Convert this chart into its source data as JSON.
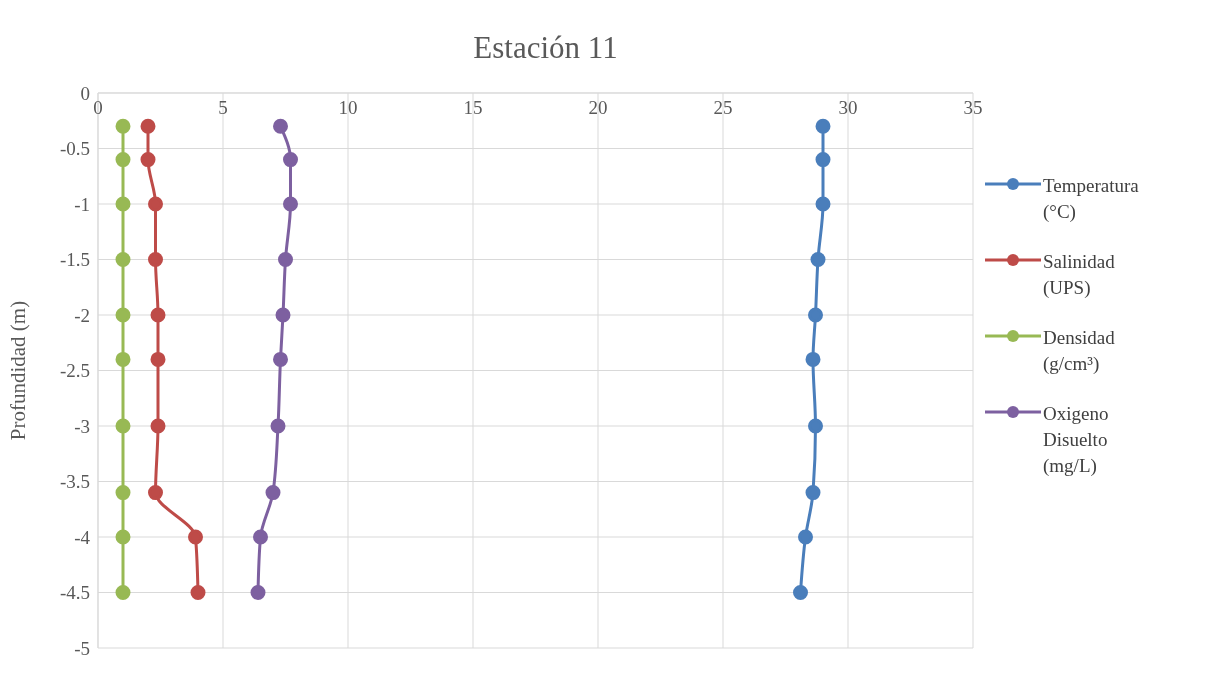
{
  "chart_data": {
    "type": "line",
    "title": "Estación 11",
    "ylabel": "Profundidad (m)",
    "x": [
      -0.3,
      -0.6,
      -1,
      -1.5,
      -2,
      -2.4,
      -3,
      -3.6,
      -4,
      -4.5
    ],
    "series": [
      {
        "name": "Temperatura (°C)",
        "color": "#4a7ebb",
        "values": [
          29.0,
          29.0,
          29.0,
          28.8,
          28.7,
          28.6,
          28.7,
          28.6,
          28.3,
          28.1
        ]
      },
      {
        "name": "Salinidad (UPS)",
        "color": "#be4b48",
        "values": [
          2.0,
          2.0,
          2.3,
          2.3,
          2.4,
          2.4,
          2.4,
          2.3,
          3.9,
          4.0
        ]
      },
      {
        "name": "Densidad (g/cm³)",
        "color": "#98b954",
        "values": [
          1.0,
          1.0,
          1.0,
          1.0,
          1.0,
          1.0,
          1.0,
          1.0,
          1.0,
          1.0
        ]
      },
      {
        "name": "Oxigeno Disuelto (mg/L)",
        "color": "#7d60a0",
        "values": [
          7.3,
          7.7,
          7.7,
          7.5,
          7.4,
          7.3,
          7.2,
          7.0,
          6.5,
          6.4
        ]
      }
    ],
    "orientation": "horizontal",
    "xlim": [
      0,
      35
    ],
    "xticks": [
      0,
      5,
      10,
      15,
      20,
      25,
      30,
      35
    ],
    "ylim": [
      -5,
      0
    ],
    "yticks": [
      0,
      -0.5,
      -1,
      -1.5,
      -2,
      -2.5,
      -3,
      -3.5,
      -4,
      -4.5,
      -5
    ],
    "grid": true,
    "legend": "right",
    "marker": "circle",
    "line_style": "solid"
  }
}
